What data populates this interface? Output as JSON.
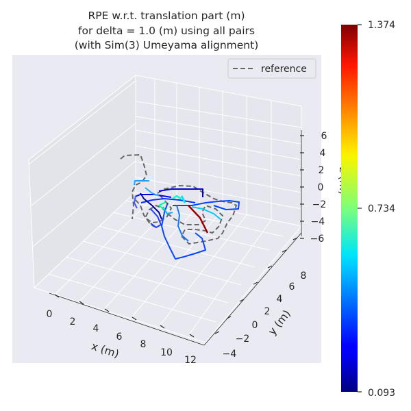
{
  "chart_data": {
    "type": "line",
    "projection": "3d",
    "title_lines": [
      "RPE w.r.t. translation part (m)",
      "for delta = 1.0 (m) using all pairs",
      "(with Sim(3) Umeyama alignment)"
    ],
    "xlabel": "x (m)",
    "ylabel": "y (m)",
    "zlabel": "z (m)",
    "x_ticks": [
      "0",
      "2",
      "4",
      "6",
      "8",
      "10",
      "12"
    ],
    "y_ticks": [
      "−4",
      "−2",
      "0",
      "2",
      "4",
      "6",
      "8"
    ],
    "z_ticks": [
      "6",
      "4",
      "2",
      "0",
      "−2",
      "−4",
      "−6"
    ],
    "legend": {
      "entries": [
        "reference"
      ],
      "position": "top-right",
      "style": "dashed gray"
    },
    "colorbar": {
      "colormap": "jet",
      "min": 0.093,
      "max": 1.374,
      "ticks": [
        "1.374",
        "0.734",
        "0.093"
      ]
    },
    "reference_color": "#666666",
    "background_color": "#eaeaf2"
  }
}
